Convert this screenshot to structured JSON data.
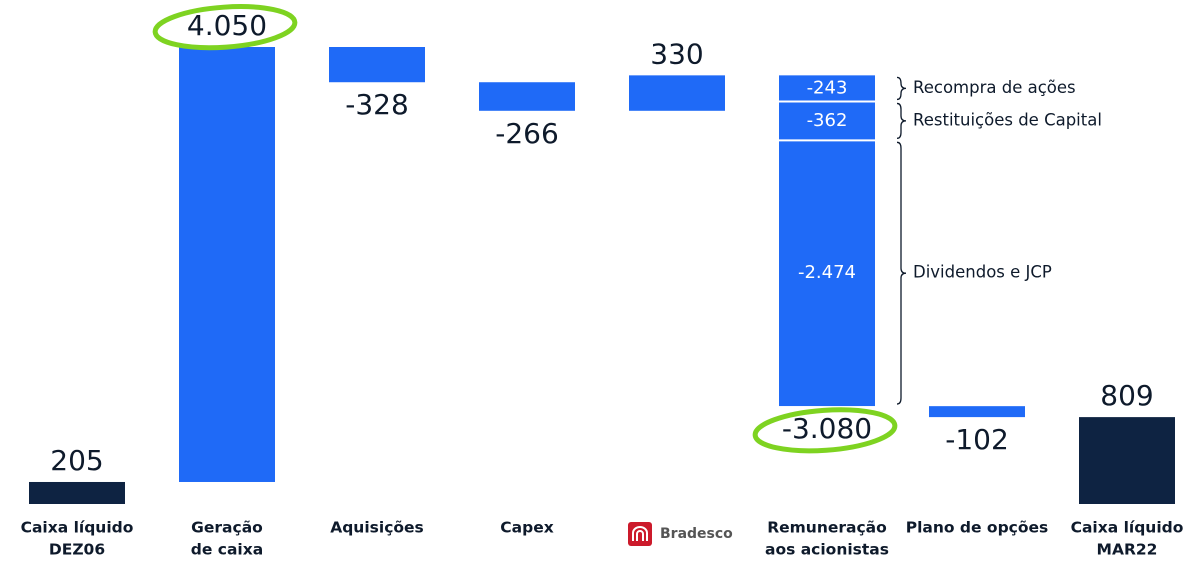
{
  "chart_data": {
    "type": "waterfall",
    "categories": [
      [
        "Caixa líquido",
        "DEZ06"
      ],
      [
        "Geração",
        "de caixa"
      ],
      [
        "Aquisições"
      ],
      [
        "Capex"
      ],
      [
        "Bradesco"
      ],
      [
        "Remuneração",
        "aos acionistas"
      ],
      [
        "Plano de opções"
      ],
      [
        "Caixa líquido",
        "MAR22"
      ]
    ],
    "values": [
      205,
      4050,
      -328,
      -266,
      330,
      -3080,
      -102,
      809
    ],
    "value_labels": [
      "205",
      "4.050",
      "-328",
      "-266",
      "330",
      "-3.080",
      "-102",
      "809"
    ],
    "totals": [
      0,
      7
    ],
    "highlight": [
      1,
      5
    ],
    "color": "#1f6af7",
    "total_color": "#0e2342",
    "highlight_color": "#7ed321",
    "breakdown": {
      "index": 5,
      "values": [
        -243,
        -362,
        -2474
      ],
      "value_labels": [
        "-243",
        "-362",
        "-2.474"
      ],
      "labels": [
        "Recompra de ações",
        "Restituições de Capital",
        "Dividendos e JCP"
      ]
    }
  }
}
